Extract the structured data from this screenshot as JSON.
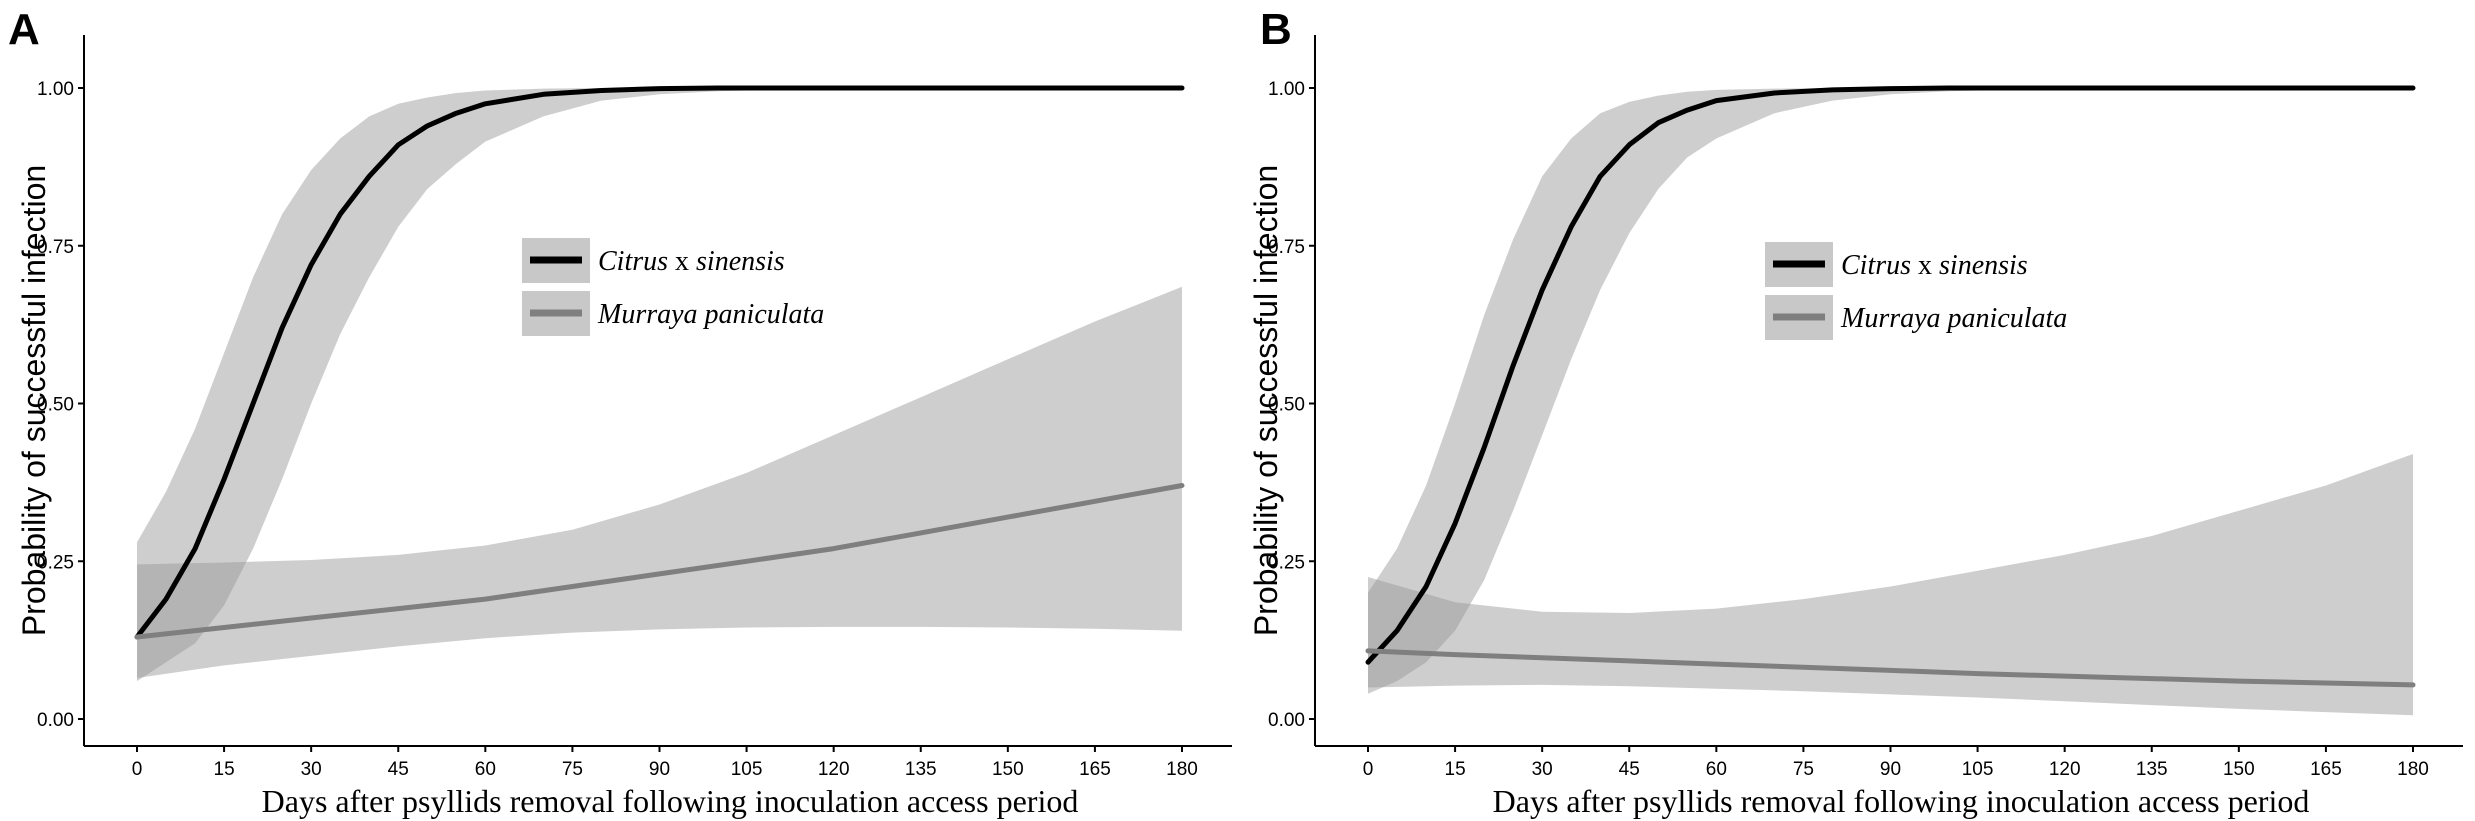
{
  "chart_data": [
    {
      "type": "line",
      "panel": "A",
      "xlabel": "Days after psyllids removal following inoculation access period",
      "ylabel": "Probability of successful infection",
      "xlim": [
        0,
        180
      ],
      "ylim": [
        0,
        1
      ],
      "xticks": [
        0,
        15,
        30,
        45,
        60,
        75,
        90,
        105,
        120,
        135,
        150,
        165,
        180
      ],
      "yticks": [
        "0.00",
        "0.25",
        "0.50",
        "0.75",
        "1.00"
      ],
      "legend": [
        {
          "italic": "Citrus",
          "normal": " x ",
          "italic2": "sinensis",
          "color": "#000000"
        },
        {
          "italic": "Murraya paniculata",
          "normal": "",
          "italic2": "",
          "color": "#7f7f7f"
        }
      ],
      "series": [
        {
          "name": "Citrus x sinensis",
          "color": "#000000",
          "x": [
            0,
            5,
            10,
            15,
            20,
            25,
            30,
            35,
            40,
            45,
            50,
            55,
            60,
            70,
            80,
            90,
            100,
            120,
            150,
            180
          ],
          "y": [
            0.13,
            0.19,
            0.27,
            0.38,
            0.5,
            0.62,
            0.72,
            0.8,
            0.86,
            0.91,
            0.94,
            0.96,
            0.975,
            0.99,
            0.996,
            0.999,
            1.0,
            1.0,
            1.0,
            1.0
          ],
          "lower": [
            0.06,
            0.09,
            0.12,
            0.18,
            0.27,
            0.38,
            0.5,
            0.61,
            0.7,
            0.78,
            0.84,
            0.88,
            0.915,
            0.955,
            0.98,
            0.99,
            0.995,
            0.999,
            1.0,
            1.0
          ],
          "upper": [
            0.28,
            0.36,
            0.46,
            0.58,
            0.7,
            0.8,
            0.87,
            0.92,
            0.955,
            0.975,
            0.985,
            0.992,
            0.996,
            0.999,
            1.0,
            1.0,
            1.0,
            1.0,
            1.0,
            1.0
          ]
        },
        {
          "name": "Murraya paniculata",
          "color": "#7f7f7f",
          "x": [
            0,
            15,
            30,
            45,
            60,
            75,
            90,
            105,
            120,
            135,
            150,
            165,
            180
          ],
          "y": [
            0.13,
            0.145,
            0.16,
            0.175,
            0.19,
            0.21,
            0.23,
            0.25,
            0.27,
            0.295,
            0.32,
            0.345,
            0.37
          ],
          "lower": [
            0.065,
            0.085,
            0.1,
            0.115,
            0.128,
            0.137,
            0.142,
            0.145,
            0.146,
            0.146,
            0.145,
            0.143,
            0.14
          ],
          "upper": [
            0.245,
            0.248,
            0.252,
            0.26,
            0.275,
            0.3,
            0.34,
            0.39,
            0.45,
            0.51,
            0.57,
            0.63,
            0.685
          ]
        }
      ]
    },
    {
      "type": "line",
      "panel": "B",
      "xlabel": "Days after psyllids removal following inoculation access period",
      "ylabel": "Probability of successful infection",
      "xlim": [
        0,
        180
      ],
      "ylim": [
        0,
        1
      ],
      "xticks": [
        0,
        15,
        30,
        45,
        60,
        75,
        90,
        105,
        120,
        135,
        150,
        165,
        180
      ],
      "yticks": [
        "0.00",
        "0.25",
        "0.50",
        "0.75",
        "1.00"
      ],
      "legend": [
        {
          "italic": "Citrus",
          "normal": " x ",
          "italic2": "sinensis",
          "color": "#000000"
        },
        {
          "italic": "Murraya paniculata",
          "normal": "",
          "italic2": "",
          "color": "#7f7f7f"
        }
      ],
      "series": [
        {
          "name": "Citrus x sinensis",
          "color": "#000000",
          "x": [
            0,
            5,
            10,
            15,
            20,
            25,
            30,
            35,
            40,
            45,
            50,
            55,
            60,
            70,
            80,
            90,
            100,
            120,
            150,
            180
          ],
          "y": [
            0.09,
            0.14,
            0.21,
            0.31,
            0.43,
            0.56,
            0.68,
            0.78,
            0.86,
            0.91,
            0.945,
            0.965,
            0.98,
            0.992,
            0.997,
            0.999,
            1.0,
            1.0,
            1.0,
            1.0
          ],
          "lower": [
            0.04,
            0.06,
            0.09,
            0.14,
            0.22,
            0.33,
            0.45,
            0.57,
            0.68,
            0.77,
            0.84,
            0.89,
            0.92,
            0.96,
            0.98,
            0.99,
            0.995,
            0.999,
            1.0,
            1.0
          ],
          "upper": [
            0.2,
            0.27,
            0.37,
            0.5,
            0.64,
            0.76,
            0.86,
            0.92,
            0.96,
            0.978,
            0.988,
            0.994,
            0.997,
            0.999,
            1.0,
            1.0,
            1.0,
            1.0,
            1.0,
            1.0
          ]
        },
        {
          "name": "Murraya paniculata",
          "color": "#7f7f7f",
          "x": [
            0,
            15,
            30,
            45,
            60,
            75,
            90,
            105,
            120,
            135,
            150,
            165,
            180
          ],
          "y": [
            0.108,
            0.102,
            0.097,
            0.092,
            0.087,
            0.082,
            0.077,
            0.072,
            0.068,
            0.064,
            0.06,
            0.057,
            0.054
          ],
          "lower": [
            0.05,
            0.053,
            0.054,
            0.052,
            0.048,
            0.044,
            0.039,
            0.034,
            0.028,
            0.022,
            0.016,
            0.011,
            0.006
          ],
          "upper": [
            0.225,
            0.185,
            0.17,
            0.168,
            0.175,
            0.19,
            0.21,
            0.235,
            0.26,
            0.29,
            0.33,
            0.37,
            0.42
          ]
        }
      ]
    }
  ]
}
